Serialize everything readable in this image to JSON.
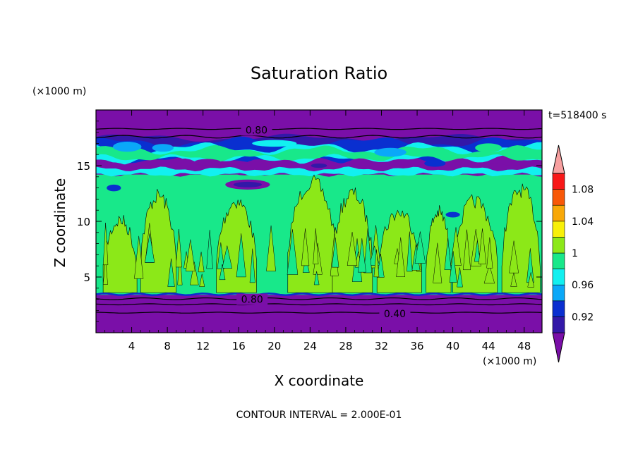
{
  "chart_data": {
    "type": "heatmap",
    "title": "Saturation Ratio",
    "xlabel": "X coordinate",
    "ylabel": "Z coordinate",
    "x_unit": "(×1000 m)",
    "y_unit": "(×1000 m)",
    "time_label": "t=518400 s",
    "footer": "CONTOUR INTERVAL = 2.000E-01",
    "xlim": [
      0,
      50
    ],
    "ylim": [
      0,
      20
    ],
    "x_ticks": [
      4,
      8,
      12,
      16,
      20,
      24,
      28,
      32,
      36,
      40,
      44,
      48
    ],
    "y_ticks": [
      5,
      10,
      15
    ],
    "contour_labels": [
      {
        "text": "0.80",
        "x": 18,
        "z": 18.2
      },
      {
        "text": "0.80",
        "x": 17.5,
        "z": 3.0
      },
      {
        "text": "0.40",
        "x": 33.5,
        "z": 1.7
      }
    ],
    "colorbar": {
      "levels": [
        0.9,
        0.92,
        0.94,
        0.96,
        0.98,
        1.0,
        1.02,
        1.04,
        1.06,
        1.08,
        1.1
      ],
      "tick_labels": [
        "0.92",
        "0.96",
        "1",
        "1.04",
        "1.08"
      ],
      "colors": [
        "#7a0fa8",
        "#3318a8",
        "#0a2fd0",
        "#0aa8f8",
        "#12f0f0",
        "#18e88a",
        "#8ce818",
        "#f8f008",
        "#f8a808",
        "#f85808",
        "#f81818",
        "#f8a0a0"
      ]
    },
    "bands": [
      {
        "z0": 0.0,
        "z1": 3.4,
        "value": "<0.90"
      },
      {
        "z0": 3.4,
        "z1": 14.3,
        "value": "0.98-1.00"
      },
      {
        "z0": 14.3,
        "z1": 18.0,
        "value": "0.90-1.00 mixed"
      },
      {
        "z0": 18.0,
        "z1": 20.0,
        "value": "<0.90"
      }
    ]
  }
}
